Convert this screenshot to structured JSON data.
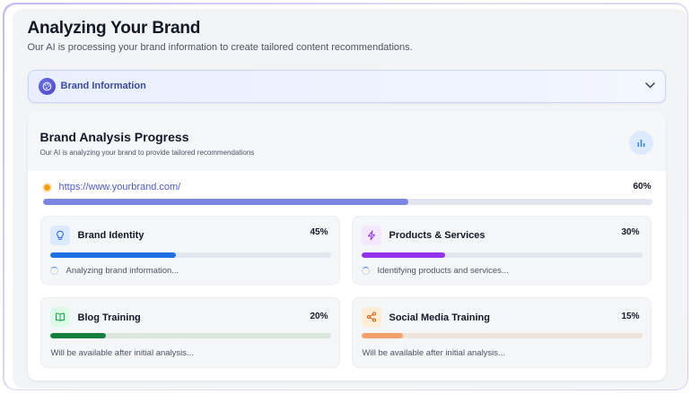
{
  "header": {
    "title": "Analyzing Your Brand",
    "subtitle": "Our AI is processing your brand information to create tailored content recommendations."
  },
  "brand_info": {
    "label": "Brand Information",
    "icon": "palette-icon",
    "expand_icon": "chevron-down-icon"
  },
  "analysis": {
    "title": "Brand Analysis Progress",
    "subtitle": "Our AI is analyzing your brand to provide tailored recommendations",
    "chart_icon": "bar-chart-icon",
    "url": "https://www.yourbrand.com/",
    "overall_progress_label": "60%",
    "overall_progress": 0.6,
    "overall_color": "#7b86e0",
    "status_dot_color": "#f59e0b"
  },
  "tasks": [
    {
      "title": "Brand Identity",
      "progress_label": "45%",
      "progress": 0.45,
      "status": "Analyzing brand information...",
      "state": "in-progress",
      "icon": "lightbulb-icon",
      "color": "#1f6fe5",
      "icon_bg": "#dbeafe",
      "track": "#e2e6ee"
    },
    {
      "title": "Products & Services",
      "progress_label": "30%",
      "progress": 0.3,
      "status": "Identifying products and services...",
      "state": "in-progress",
      "icon": "lightning-icon",
      "color": "#9333ea",
      "icon_bg": "#f3e8ff",
      "track": "#e2e6ee"
    },
    {
      "title": "Blog Training",
      "progress_label": "20%",
      "progress": 0.2,
      "status": "Will be available after initial analysis...",
      "state": "pending",
      "icon": "book-icon",
      "color": "#15803d",
      "icon_bg": "#dcfce7",
      "track": "#dbe7dd"
    },
    {
      "title": "Social Media Training",
      "progress_label": "15%",
      "progress": 0.15,
      "status": "Will be available after initial analysis...",
      "state": "pending",
      "icon": "share-icon",
      "color": "#f4a06a",
      "icon_bg": "#ffedd5",
      "track": "#eee4dc"
    }
  ]
}
